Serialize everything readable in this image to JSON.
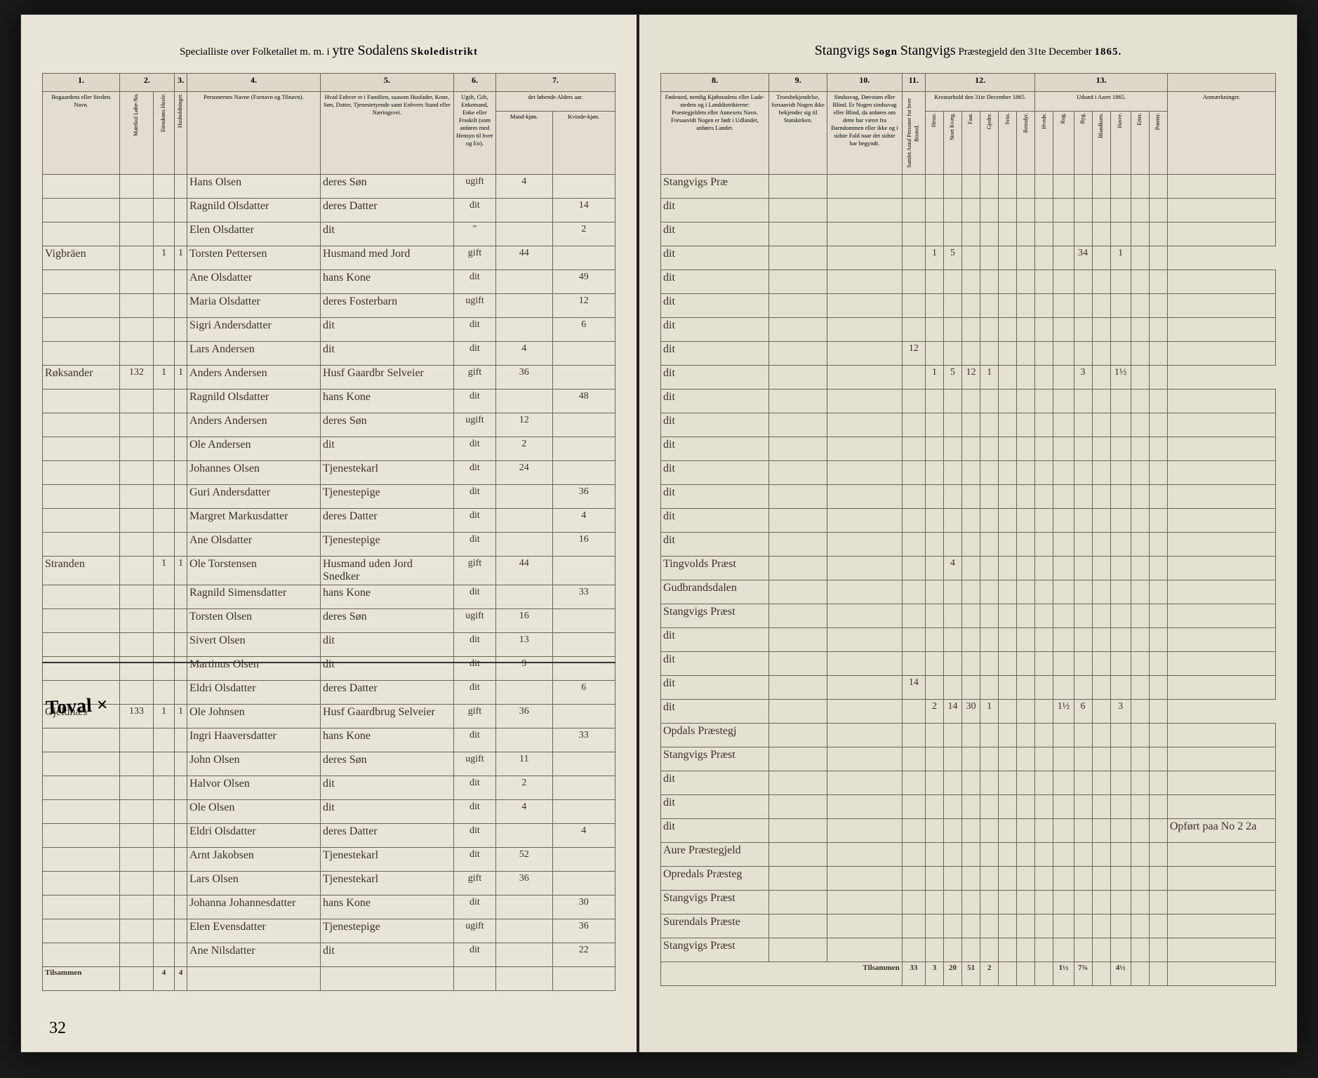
{
  "header": {
    "left_pre": "Specialliste over Folketallet m. m. i",
    "left_hand": "ytre Sodalens",
    "left_post": "Skoledistrikt",
    "right_pre_hand": "Stangvigs",
    "right_sogn": "Sogn",
    "right_hand2": "Stangvigs",
    "right_post": "Præstegjeld den 31te December",
    "year": "1865."
  },
  "columns_left": {
    "c1": "1.",
    "c2": "2.",
    "c3": "3.",
    "c4": "4.",
    "c5": "5.",
    "c6": "6.",
    "c7": "7.",
    "h1": "Bogaardens eller Stedets Navn.",
    "h2a": "Matrikul Løbe-No.",
    "h2b": "Eiendoms Husfe.",
    "h3": "Husholdninger.",
    "h4": "Personernes Navne (Fornavn og Tilnavn).",
    "h5": "Hvad Enhver er i Familien, saasom Husfader, Kone, Søn, Datter, Tjenestetyende samt Enhvers Stand eller Næringsvei.",
    "h6": "Ugift, Gift, Enkemand, Enke eller Fraskilt (som anføres med Hensyn til hver og En).",
    "h7": "det løbende Alders aar.",
    "h7a": "Mand-kjøn.",
    "h7b": "Kvinde-kjøn."
  },
  "columns_right": {
    "c8": "8.",
    "c9": "9.",
    "c10": "10.",
    "c11": "11.",
    "c12": "12.",
    "c13": "13.",
    "h8": "Fødested, nemlig Kjøbstadens eller Lade-stedets og i Landdistrikterne: Præstegjeldets eller Annexets Navn. Forsaavidt Nogen er født i Udlandet, anføres Landet.",
    "h9": "Troesbekjendelse, forsaavidt Nogen ikke bekjender sig til Statskirken.",
    "h10": "Sindssvag, Døvstum eller Blind. Er Nogen sindssvag eller Blind, da anføres om dette har været fra Barndommen eller ikke og i sidste Fald naar det sidste har begyndt.",
    "h11": "Samlet Antal Personer for hver Bosted.",
    "h12": "Kreaturhold den 31te December 1865.",
    "h12a": "Heste.",
    "h12b": "Stort Kvæg.",
    "h12c": "Faar.",
    "h12d": "Gjeder.",
    "h12e": "Svin.",
    "h12f": "Rensdyr.",
    "h13": "Udsæd i Aaret 1865.",
    "h13a": "Hvede.",
    "h13b": "Rug.",
    "h13c": "Byg.",
    "h13d": "Blandkorn.",
    "h13e": "Havre.",
    "h13f": "Erter.",
    "h13g": "Poteter.",
    "h14": "Anmærkninger."
  },
  "rows": [
    {
      "place": "",
      "m": "",
      "e": "",
      "h": "",
      "name": "Hans Olsen",
      "role": "deres Søn",
      "stat": "ugift",
      "mk": "4",
      "kk": "",
      "birth": "Stangvigs Præ",
      "c11": "",
      "k": [
        "",
        "",
        "",
        "",
        "",
        ""
      ],
      "u": [
        "",
        "",
        "",
        "",
        "",
        "",
        ""
      ],
      "note": ""
    },
    {
      "place": "",
      "m": "",
      "e": "",
      "h": "",
      "name": "Ragnild Olsdatter",
      "role": "deres Datter",
      "stat": "dit",
      "mk": "",
      "kk": "14",
      "birth": "dit",
      "c11": "",
      "k": [
        "",
        "",
        "",
        "",
        "",
        ""
      ],
      "u": [
        "",
        "",
        "",
        "",
        "",
        "",
        ""
      ],
      "note": ""
    },
    {
      "place": "",
      "m": "",
      "e": "",
      "h": "",
      "name": "Elen Olsdatter",
      "role": "dit",
      "stat": "\"",
      "mk": "",
      "kk": "2",
      "birth": "dit",
      "c11": "",
      "k": [
        "",
        "",
        "",
        "",
        "",
        ""
      ],
      "u": [
        "",
        "",
        "",
        "",
        "",
        "",
        ""
      ],
      "note": ""
    },
    {
      "place": "Vigbräen",
      "m": "",
      "e": "1",
      "h": "1",
      "name": "Torsten Pettersen",
      "role": "Husmand med Jord",
      "stat": "gift",
      "mk": "44",
      "kk": "",
      "birth": "dit",
      "c11": "",
      "k": [
        "1",
        "5",
        "",
        "",
        "",
        ""
      ],
      "u": [
        "",
        "",
        "34",
        "",
        "1",
        ""
      ],
      "note": ""
    },
    {
      "place": "",
      "m": "",
      "e": "",
      "h": "",
      "name": "Ane Olsdatter",
      "role": "hans Kone",
      "stat": "dit",
      "mk": "",
      "kk": "49",
      "birth": "dit",
      "c11": "",
      "k": [
        "",
        "",
        "",
        "",
        "",
        ""
      ],
      "u": [
        "",
        "",
        "",
        "",
        "",
        "",
        ""
      ],
      "note": ""
    },
    {
      "place": "",
      "m": "",
      "e": "",
      "h": "",
      "name": "Maria Olsdatter",
      "role": "deres Fosterbarn",
      "stat": "ugift",
      "mk": "",
      "kk": "12",
      "birth": "dit",
      "c11": "",
      "k": [
        "",
        "",
        "",
        "",
        "",
        ""
      ],
      "u": [
        "",
        "",
        "",
        "",
        "",
        "",
        ""
      ],
      "note": ""
    },
    {
      "place": "",
      "m": "",
      "e": "",
      "h": "",
      "name": "Sigri Andersdatter",
      "role": "dit",
      "stat": "dit",
      "mk": "",
      "kk": "6",
      "birth": "dit",
      "c11": "",
      "k": [
        "",
        "",
        "",
        "",
        "",
        ""
      ],
      "u": [
        "",
        "",
        "",
        "",
        "",
        "",
        ""
      ],
      "note": ""
    },
    {
      "place": "",
      "m": "",
      "e": "",
      "h": "",
      "name": "Lars Andersen",
      "role": "dit",
      "stat": "dit",
      "mk": "4",
      "kk": "",
      "birth": "dit",
      "c11": "12",
      "k": [
        "",
        "",
        "",
        "",
        "",
        ""
      ],
      "u": [
        "",
        "",
        "",
        "",
        "",
        "",
        ""
      ],
      "note": ""
    },
    {
      "place": "Røksander",
      "m": "132",
      "e": "1",
      "h": "1",
      "name": "Anders Andersen",
      "role": "Husf Gaardbr Selveier",
      "stat": "gift",
      "mk": "36",
      "kk": "",
      "birth": "dit",
      "c11": "",
      "k": [
        "1",
        "5",
        "12",
        "1",
        "",
        ""
      ],
      "u": [
        "",
        "",
        "3",
        "",
        "1½",
        ""
      ],
      "note": ""
    },
    {
      "place": "",
      "m": "",
      "e": "",
      "h": "",
      "name": "Ragnild Olsdatter",
      "role": "hans Kone",
      "stat": "dit",
      "mk": "",
      "kk": "48",
      "birth": "dit",
      "c11": "",
      "k": [
        "",
        "",
        "",
        "",
        "",
        ""
      ],
      "u": [
        "",
        "",
        "",
        "",
        "",
        "",
        ""
      ],
      "note": ""
    },
    {
      "place": "",
      "m": "",
      "e": "",
      "h": "",
      "name": "Anders Andersen",
      "role": "deres Søn",
      "stat": "ugift",
      "mk": "12",
      "kk": "",
      "birth": "dit",
      "c11": "",
      "k": [
        "",
        "",
        "",
        "",
        "",
        ""
      ],
      "u": [
        "",
        "",
        "",
        "",
        "",
        "",
        ""
      ],
      "note": ""
    },
    {
      "place": "",
      "m": "",
      "e": "",
      "h": "",
      "name": "Ole Andersen",
      "role": "dit",
      "stat": "dit",
      "mk": "2",
      "kk": "",
      "birth": "dit",
      "c11": "",
      "k": [
        "",
        "",
        "",
        "",
        "",
        ""
      ],
      "u": [
        "",
        "",
        "",
        "",
        "",
        "",
        ""
      ],
      "note": ""
    },
    {
      "place": "",
      "m": "",
      "e": "",
      "h": "",
      "name": "Johannes Olsen",
      "role": "Tjenestekarl",
      "stat": "dit",
      "mk": "24",
      "kk": "",
      "birth": "dit",
      "c11": "",
      "k": [
        "",
        "",
        "",
        "",
        "",
        ""
      ],
      "u": [
        "",
        "",
        "",
        "",
        "",
        "",
        ""
      ],
      "note": ""
    },
    {
      "place": "",
      "m": "",
      "e": "",
      "h": "",
      "name": "Guri Andersdatter",
      "role": "Tjenestepige",
      "stat": "dit",
      "mk": "",
      "kk": "36",
      "birth": "dit",
      "c11": "",
      "k": [
        "",
        "",
        "",
        "",
        "",
        ""
      ],
      "u": [
        "",
        "",
        "",
        "",
        "",
        "",
        ""
      ],
      "note": ""
    },
    {
      "place": "",
      "m": "",
      "e": "",
      "h": "",
      "name": "Margret Markusdatter",
      "role": "deres Datter",
      "stat": "dit",
      "mk": "",
      "kk": "4",
      "birth": "dit",
      "c11": "",
      "k": [
        "",
        "",
        "",
        "",
        "",
        ""
      ],
      "u": [
        "",
        "",
        "",
        "",
        "",
        "",
        ""
      ],
      "note": ""
    },
    {
      "place": "",
      "m": "",
      "e": "",
      "h": "",
      "name": "Ane Olsdatter",
      "role": "Tjenestepige",
      "stat": "dit",
      "mk": "",
      "kk": "16",
      "birth": "dit",
      "c11": "",
      "k": [
        "",
        "",
        "",
        "",
        "",
        ""
      ],
      "u": [
        "",
        "",
        "",
        "",
        "",
        "",
        ""
      ],
      "note": ""
    },
    {
      "place": "Stranden",
      "m": "",
      "e": "1",
      "h": "1",
      "name": "Ole Torstensen",
      "role": "Husmand uden Jord Snedker",
      "stat": "gift",
      "mk": "44",
      "kk": "",
      "birth": "Tingvolds Præst",
      "c11": "",
      "k": [
        "",
        "4",
        "",
        "",
        "",
        ""
      ],
      "u": [
        "",
        "",
        "",
        "",
        "",
        "",
        ""
      ],
      "note": ""
    },
    {
      "place": "",
      "m": "",
      "e": "",
      "h": "",
      "name": "Ragnild Simensdatter",
      "role": "hans Kone",
      "stat": "dit",
      "mk": "",
      "kk": "33",
      "birth": "Gudbrandsdalen",
      "c11": "",
      "k": [
        "",
        "",
        "",
        "",
        "",
        ""
      ],
      "u": [
        "",
        "",
        "",
        "",
        "",
        "",
        ""
      ],
      "note": ""
    },
    {
      "place": "",
      "m": "",
      "e": "",
      "h": "",
      "name": "Torsten Olsen",
      "role": "deres Søn",
      "stat": "ugift",
      "mk": "16",
      "kk": "",
      "birth": "Stangvigs Præst",
      "c11": "",
      "k": [
        "",
        "",
        "",
        "",
        "",
        ""
      ],
      "u": [
        "",
        "",
        "",
        "",
        "",
        "",
        ""
      ],
      "note": ""
    },
    {
      "place": "",
      "m": "",
      "e": "",
      "h": "",
      "name": "Sivert Olsen",
      "role": "dit",
      "stat": "dit",
      "mk": "13",
      "kk": "",
      "birth": "dit",
      "c11": "",
      "k": [
        "",
        "",
        "",
        "",
        "",
        ""
      ],
      "u": [
        "",
        "",
        "",
        "",
        "",
        "",
        ""
      ],
      "note": ""
    },
    {
      "place": "",
      "m": "",
      "e": "",
      "h": "",
      "name": "Martinus Olsen",
      "role": "dit",
      "stat": "dit",
      "mk": "9",
      "kk": "",
      "birth": "dit",
      "c11": "",
      "k": [
        "",
        "",
        "",
        "",
        "",
        ""
      ],
      "u": [
        "",
        "",
        "",
        "",
        "",
        "",
        ""
      ],
      "note": ""
    },
    {
      "place": "",
      "m": "",
      "e": "",
      "h": "",
      "name": "Eldri Olsdatter",
      "role": "deres Datter",
      "stat": "dit",
      "mk": "",
      "kk": "6",
      "birth": "dit",
      "c11": "14",
      "k": [
        "",
        "",
        "",
        "",
        "",
        ""
      ],
      "u": [
        "",
        "",
        "",
        "",
        "",
        "",
        ""
      ],
      "note": ""
    },
    {
      "place": "Gjeldnæs",
      "m": "133",
      "e": "1",
      "h": "1",
      "name": "Ole Johnsen",
      "role": "Husf Gaardbrug Selveier",
      "stat": "gift",
      "mk": "36",
      "kk": "",
      "birth": "dit",
      "c11": "",
      "k": [
        "2",
        "14",
        "30",
        "1",
        "",
        ""
      ],
      "u": [
        "",
        "1½",
        "6",
        "",
        "3",
        ""
      ],
      "note": ""
    },
    {
      "place": "",
      "m": "",
      "e": "",
      "h": "",
      "name": "Ingri Haaversdatter",
      "role": "hans Kone",
      "stat": "dit",
      "mk": "",
      "kk": "33",
      "birth": "Opdals Præstegj",
      "c11": "",
      "k": [
        "",
        "",
        "",
        "",
        "",
        ""
      ],
      "u": [
        "",
        "",
        "",
        "",
        "",
        "",
        ""
      ],
      "note": ""
    },
    {
      "place": "",
      "m": "",
      "e": "",
      "h": "",
      "name": "John Olsen",
      "role": "deres Søn",
      "stat": "ugift",
      "mk": "11",
      "kk": "",
      "birth": "Stangvigs Præst",
      "c11": "",
      "k": [
        "",
        "",
        "",
        "",
        "",
        ""
      ],
      "u": [
        "",
        "",
        "",
        "",
        "",
        "",
        ""
      ],
      "note": ""
    },
    {
      "place": "",
      "m": "",
      "e": "",
      "h": "",
      "name": "Halvor Olsen",
      "role": "dit",
      "stat": "dit",
      "mk": "2",
      "kk": "",
      "birth": "dit",
      "c11": "",
      "k": [
        "",
        "",
        "",
        "",
        "",
        ""
      ],
      "u": [
        "",
        "",
        "",
        "",
        "",
        "",
        ""
      ],
      "note": ""
    },
    {
      "place": "",
      "m": "",
      "e": "",
      "h": "",
      "name": "Ole Olsen",
      "role": "dit",
      "stat": "dit",
      "mk": "4",
      "kk": "",
      "birth": "dit",
      "c11": "",
      "k": [
        "",
        "",
        "",
        "",
        "",
        ""
      ],
      "u": [
        "",
        "",
        "",
        "",
        "",
        "",
        ""
      ],
      "note": ""
    },
    {
      "place": "",
      "m": "",
      "e": "",
      "h": "",
      "name": "Eldri Olsdatter",
      "role": "deres Datter",
      "stat": "dit",
      "mk": "",
      "kk": "4",
      "birth": "dit",
      "c11": "",
      "k": [
        "",
        "",
        "",
        "",
        "",
        ""
      ],
      "u": [
        "",
        "",
        "",
        "",
        "",
        "",
        ""
      ],
      "note": "Opført paa No 2 2a"
    },
    {
      "place": "",
      "m": "",
      "e": "",
      "h": "",
      "name": "Arnt Jakobsen",
      "role": "Tjenestekarl",
      "stat": "dit",
      "mk": "52",
      "kk": "",
      "birth": "Aure Præstegjeld",
      "c11": "",
      "k": [
        "",
        "",
        "",
        "",
        "",
        ""
      ],
      "u": [
        "",
        "",
        "",
        "",
        "",
        "",
        ""
      ],
      "note": ""
    },
    {
      "place": "",
      "m": "",
      "e": "",
      "h": "",
      "name": "Lars Olsen",
      "role": "Tjenestekarl",
      "stat": "gift",
      "mk": "36",
      "kk": "",
      "birth": "Opredals Præsteg",
      "c11": "",
      "k": [
        "",
        "",
        "",
        "",
        "",
        ""
      ],
      "u": [
        "",
        "",
        "",
        "",
        "",
        "",
        ""
      ],
      "note": ""
    },
    {
      "place": "",
      "m": "",
      "e": "",
      "h": "",
      "name": "Johanna Johannesdatter",
      "role": "hans Kone",
      "stat": "dit",
      "mk": "",
      "kk": "30",
      "birth": "Stangvigs Præst",
      "c11": "",
      "k": [
        "",
        "",
        "",
        "",
        "",
        ""
      ],
      "u": [
        "",
        "",
        "",
        "",
        "",
        "",
        ""
      ],
      "note": ""
    },
    {
      "place": "",
      "m": "",
      "e": "",
      "h": "",
      "name": "Elen Evensdatter",
      "role": "Tjenestepige",
      "stat": "ugift",
      "mk": "",
      "kk": "36",
      "birth": "Surendals Præste",
      "c11": "",
      "k": [
        "",
        "",
        "",
        "",
        "",
        ""
      ],
      "u": [
        "",
        "",
        "",
        "",
        "",
        "",
        ""
      ],
      "note": ""
    },
    {
      "place": "",
      "m": "",
      "e": "",
      "h": "",
      "name": "Ane Nilsdatter",
      "role": "dit",
      "stat": "dit",
      "mk": "",
      "kk": "22",
      "birth": "Stangvigs Præst",
      "c11": "",
      "k": [
        "",
        "",
        "",
        "",
        "",
        ""
      ],
      "u": [
        "",
        "",
        "",
        "",
        "",
        "",
        ""
      ],
      "note": ""
    }
  ],
  "footer_left": {
    "label": "Tilsammen",
    "e": "4",
    "h": "4"
  },
  "footer_right": {
    "label": "Tilsammen",
    "c11": "33",
    "k": [
      "3",
      "20",
      "51",
      "2",
      "",
      ""
    ],
    "u": [
      "",
      "1½",
      "7¾",
      "",
      "4½",
      ""
    ]
  },
  "page_number": "32",
  "marginal_note": "Toval ×"
}
